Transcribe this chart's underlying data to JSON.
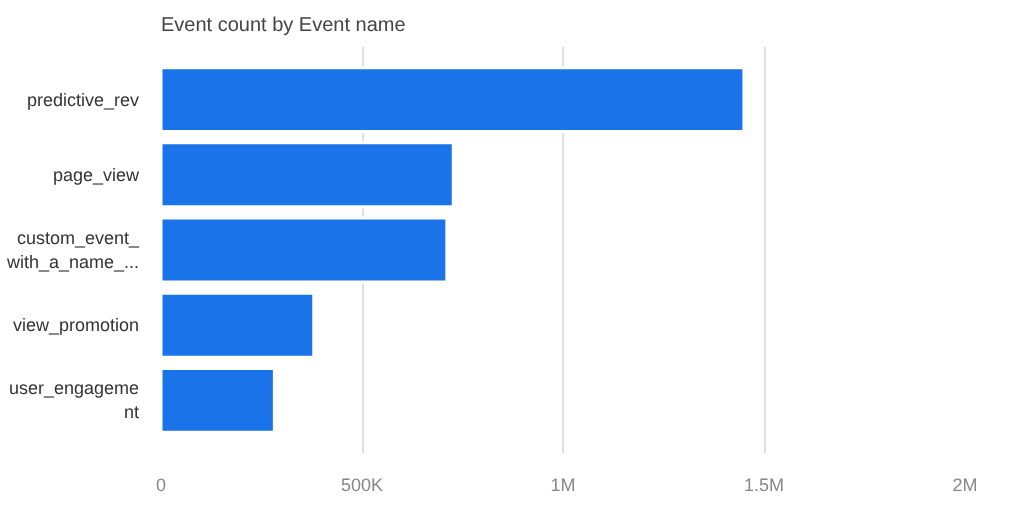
{
  "chart_data": {
    "type": "bar",
    "orientation": "horizontal",
    "title": "Event count by Event name",
    "categories": [
      "predictive_rev",
      "page_view",
      "custom_event_with_a_name_...",
      "view_promotion",
      "user_engagement"
    ],
    "values": [
      1450000,
      727000,
      711000,
      380000,
      282000
    ],
    "color": "#1a73e8",
    "xlim": [
      0,
      2000000
    ],
    "xticks": [
      0,
      {
        "value": 500000,
        "label": "500K"
      },
      {
        "value": 1000000,
        "label": "1M"
      },
      {
        "value": 1500000,
        "label": "1.5M"
      },
      {
        "value": 2000000,
        "label": "2M"
      }
    ],
    "grid": "x"
  }
}
